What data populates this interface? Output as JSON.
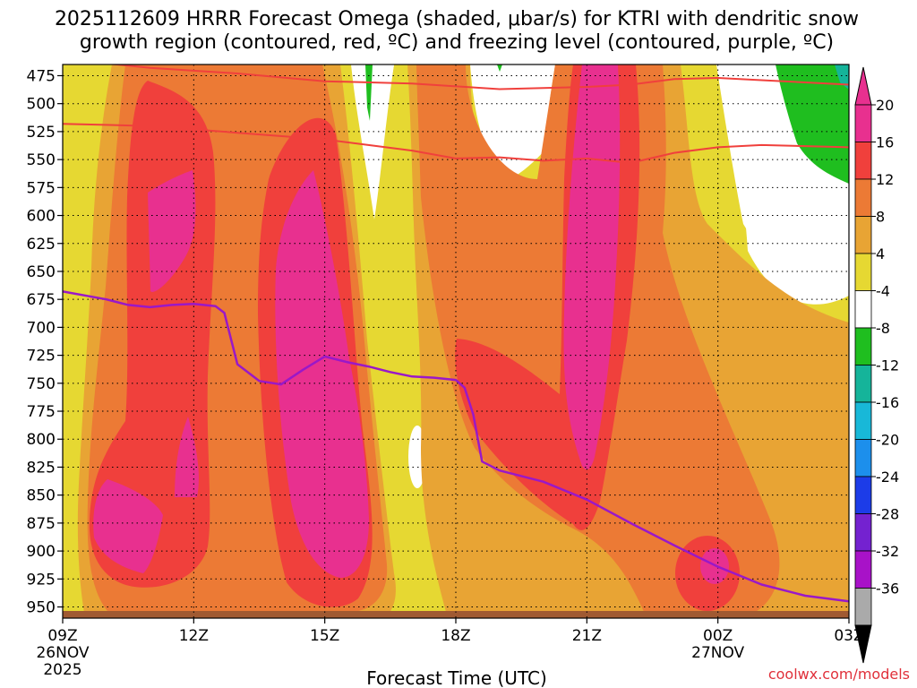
{
  "chart_data": {
    "type": "time-height contour",
    "title_line1": "2025112609 HRRR Forecast Omega (shaded, μbar/s) for KTRI with dendritic snow",
    "title_line2": "growth region (contoured, red, ºC) and freezing level (contoured, purple, ºC)",
    "xlabel": "Forecast Time (UTC)",
    "credit": "coolwx.com/models",
    "x_ticks": [
      {
        "hour": 0,
        "label": "09Z",
        "sub1": "26NOV",
        "sub2": "2025"
      },
      {
        "hour": 3,
        "label": "12Z",
        "sub1": "",
        "sub2": ""
      },
      {
        "hour": 6,
        "label": "15Z",
        "sub1": "",
        "sub2": ""
      },
      {
        "hour": 9,
        "label": "18Z",
        "sub1": "",
        "sub2": ""
      },
      {
        "hour": 12,
        "label": "21Z",
        "sub1": "",
        "sub2": ""
      },
      {
        "hour": 15,
        "label": "00Z",
        "sub1": "27NOV",
        "sub2": ""
      },
      {
        "hour": 18,
        "label": "03Z",
        "sub1": "",
        "sub2": ""
      }
    ],
    "x_range_hours": [
      0,
      18
    ],
    "y_ticks": [
      "475",
      "500",
      "525",
      "550",
      "575",
      "600",
      "625",
      "650",
      "675",
      "700",
      "725",
      "750",
      "775",
      "800",
      "825",
      "850",
      "875",
      "900",
      "925",
      "950"
    ],
    "y_range_mb": [
      465,
      960
    ],
    "colorbar": {
      "labels": [
        "20",
        "16",
        "12",
        "8",
        "4",
        "-4",
        "-8",
        "-12",
        "-16",
        "-20",
        "-24",
        "-28",
        "-32",
        "-36"
      ],
      "colors": [
        "#e8308f",
        "#f0403c",
        "#ec7a35",
        "#e8a434",
        "#e6d832",
        "#ffffff",
        "#1fbe1f",
        "#15b49a",
        "#18b8d8",
        "#1c8fec",
        "#1c3ce8",
        "#7422d0",
        "#a812c8",
        "#aaaaaa"
      ],
      "top_arrow": "#e8308f",
      "bottom_arrow": "#000000"
    },
    "freezing_level": {
      "color": "#9a18c8",
      "hours": [
        0,
        1,
        1.5,
        2,
        2.5,
        3,
        3.5,
        3.7,
        4,
        4.5,
        5,
        5.5,
        6,
        6.5,
        7,
        7.5,
        8,
        8.5,
        9,
        9.2,
        9.4,
        9.6,
        10,
        11,
        12,
        13,
        14,
        15,
        16,
        17,
        18
      ],
      "pressure_mb": [
        668,
        675,
        680,
        682,
        680,
        679,
        681,
        687,
        733,
        748,
        751,
        738,
        726,
        731,
        735,
        740,
        744,
        745,
        747,
        754,
        778,
        820,
        828,
        838,
        854,
        875,
        895,
        914,
        930,
        940,
        945
      ]
    },
    "dgz_isotherms": {
      "color": "#f0403c",
      "upper": {
        "hours": [
          0,
          2,
          4,
          6,
          8,
          10,
          12,
          13,
          14,
          15,
          16,
          17,
          18
        ],
        "pressure_mb": [
          460,
          468,
          473,
          480,
          482,
          487,
          485,
          483,
          478,
          477,
          479,
          481,
          483
        ]
      },
      "lower": {
        "hours": [
          0,
          2,
          4,
          6,
          7,
          8,
          9,
          10,
          11,
          12,
          13,
          14,
          15,
          16,
          17,
          18
        ],
        "pressure_mb": [
          518,
          520,
          526,
          532,
          537,
          542,
          549,
          548,
          551,
          549,
          553,
          544,
          539,
          537,
          538,
          539
        ]
      }
    }
  }
}
